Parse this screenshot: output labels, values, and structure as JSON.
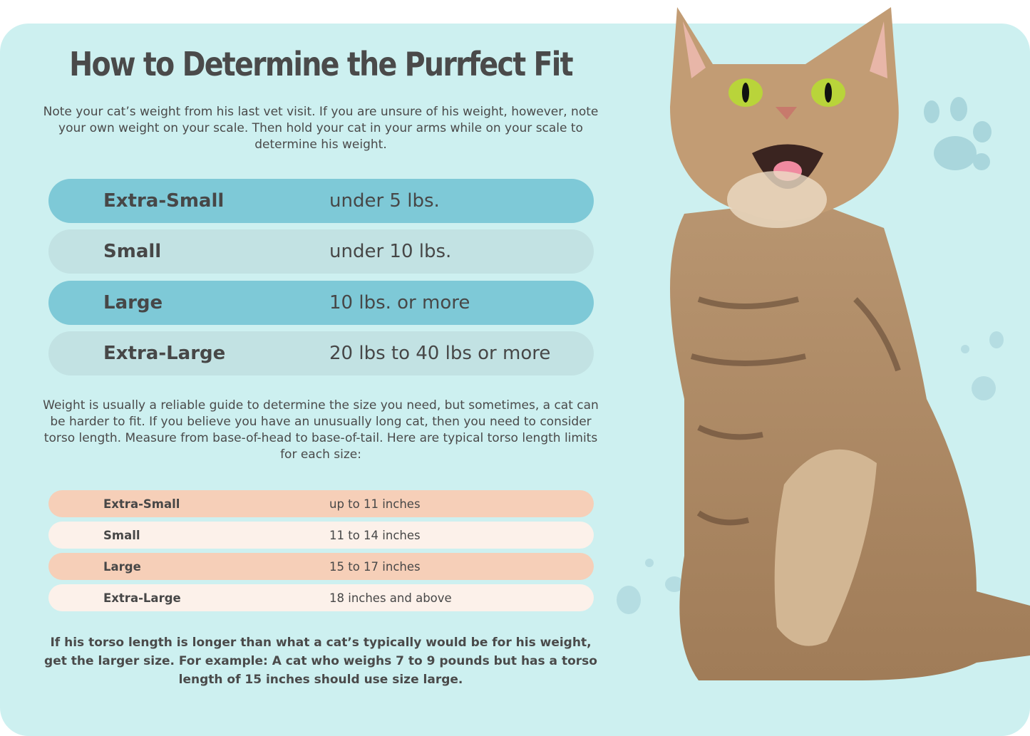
{
  "title": "How to Determine the Purrfect Fit",
  "intro": "Note your cat’s weight from his last vet visit. If you are unsure of his weight, however, note your own weight on your scale. Then hold your cat in your arms while on your scale to determine his weight.",
  "weight_sizes": [
    {
      "size": "Extra-Small",
      "range": "under 5 lbs."
    },
    {
      "size": "Small",
      "range": "under 10 lbs."
    },
    {
      "size": "Large",
      "range": "10 lbs. or more"
    },
    {
      "size": "Extra-Large",
      "range": "20 lbs to 40 lbs or more"
    }
  ],
  "torso_intro": "Weight is usually a reliable guide to determine the size you need, but sometimes, a cat can be harder to fit. If you believe you have an unusually long cat, then you need to consider torso length. Measure from base-of-head to base-of-tail. Here are typical torso length limits for each size:",
  "torso_sizes": [
    {
      "size": "Extra-Small",
      "range": "up to 11 inches"
    },
    {
      "size": "Small",
      "range": "11 to 14 inches"
    },
    {
      "size": "Large",
      "range": "15 to 17 inches"
    },
    {
      "size": "Extra-Large",
      "range": "18 inches and above"
    }
  ],
  "note": "If his torso length is longer than what a cat’s typically would be for his weight, get the larger size. For example: A cat who weighs 7 to 9 pounds but has a torso length of 15 inches should use size large.",
  "colors": {
    "panel": "#cdf0f0",
    "weight_row_a": "#7ec9d7",
    "weight_row_b": "#c2e2e3",
    "torso_row_a": "#f6cfb8",
    "torso_row_b": "#fcf1ea"
  },
  "images": [
    "tabby-cat-photo",
    "paw-print-icon"
  ]
}
